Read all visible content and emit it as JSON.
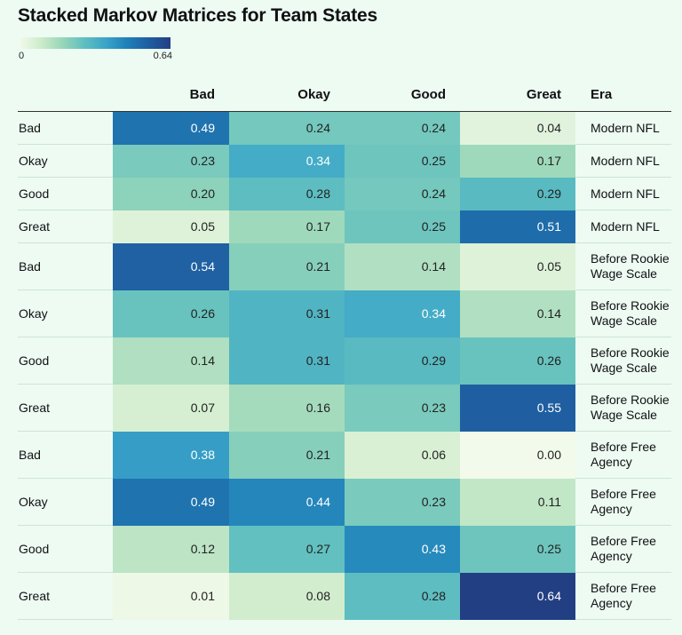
{
  "title": "Stacked Markov Matrices for Team States",
  "legend": {
    "min_label": "0",
    "max_label": "0.64"
  },
  "chart_data": {
    "type": "heatmap",
    "title": "Stacked Markov Matrices for Team States",
    "columns": [
      "Bad",
      "Okay",
      "Good",
      "Great"
    ],
    "era_header": "Era",
    "color_range": [
      0,
      0.64
    ],
    "color_scale": [
      "#f2faeb",
      "#cdebca",
      "#97d6b9",
      "#5fbfc0",
      "#3aa4c8",
      "#1f7fb8",
      "#1f5ea0",
      "#233f84"
    ],
    "rows": [
      {
        "state": "Bad",
        "era": "Modern NFL",
        "values": [
          0.49,
          0.24,
          0.24,
          0.04
        ]
      },
      {
        "state": "Okay",
        "era": "Modern NFL",
        "values": [
          0.23,
          0.34,
          0.25,
          0.17
        ]
      },
      {
        "state": "Good",
        "era": "Modern NFL",
        "values": [
          0.2,
          0.28,
          0.24,
          0.29
        ]
      },
      {
        "state": "Great",
        "era": "Modern NFL",
        "values": [
          0.05,
          0.17,
          0.25,
          0.51
        ]
      },
      {
        "state": "Bad",
        "era": "Before Rookie Wage Scale",
        "values": [
          0.54,
          0.21,
          0.14,
          0.05
        ]
      },
      {
        "state": "Okay",
        "era": "Before Rookie Wage Scale",
        "values": [
          0.26,
          0.31,
          0.34,
          0.14
        ]
      },
      {
        "state": "Good",
        "era": "Before Rookie Wage Scale",
        "values": [
          0.14,
          0.31,
          0.29,
          0.26
        ]
      },
      {
        "state": "Great",
        "era": "Before Rookie Wage Scale",
        "values": [
          0.07,
          0.16,
          0.23,
          0.55
        ]
      },
      {
        "state": "Bad",
        "era": "Before Free Agency",
        "values": [
          0.38,
          0.21,
          0.06,
          0.0
        ]
      },
      {
        "state": "Okay",
        "era": "Before Free Agency",
        "values": [
          0.49,
          0.44,
          0.23,
          0.11
        ]
      },
      {
        "state": "Good",
        "era": "Before Free Agency",
        "values": [
          0.12,
          0.27,
          0.43,
          0.25
        ]
      },
      {
        "state": "Great",
        "era": "Before Free Agency",
        "values": [
          0.01,
          0.08,
          0.28,
          0.64
        ]
      }
    ]
  }
}
